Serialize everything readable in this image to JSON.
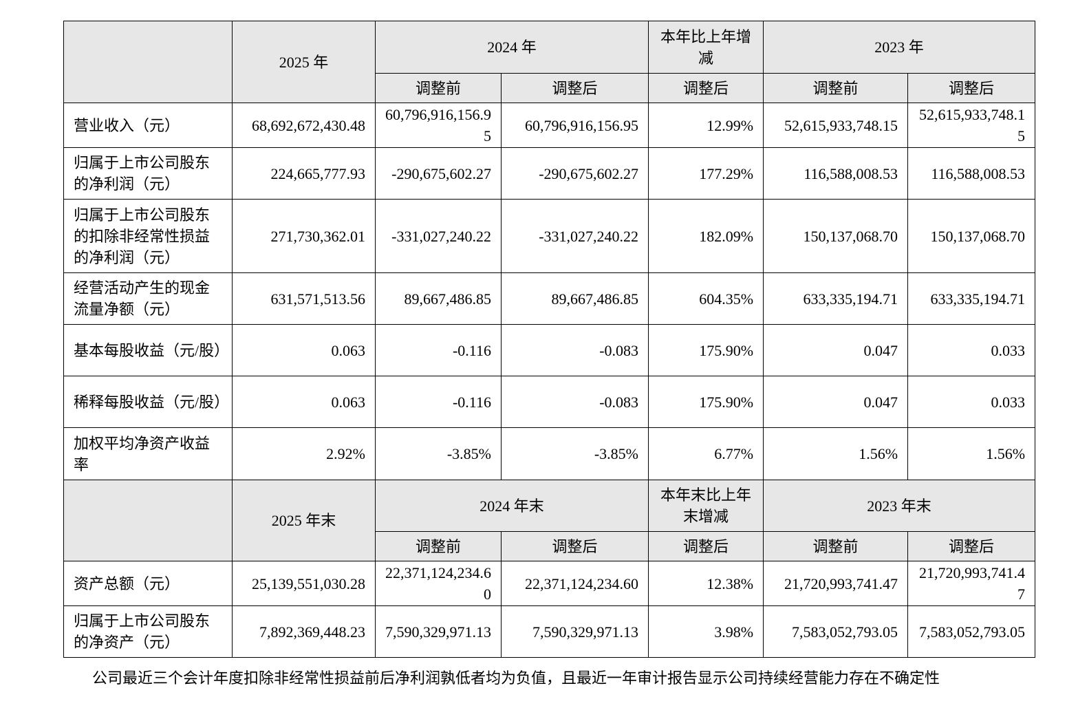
{
  "section1": {
    "header": {
      "year_2025": "2025 年",
      "year_2024": "2024 年",
      "change": "本年比上年增减",
      "year_2023": "2023 年",
      "before": "调整前",
      "after": "调整后"
    },
    "rows": [
      [
        "营业收入（元）",
        "68,692,672,430.48",
        "60,796,916,156.95",
        "60,796,916,156.95",
        "12.99%",
        "52,615,933,748.15",
        "52,615,933,748.15"
      ],
      [
        "归属于上市公司股东的净利润（元）",
        "224,665,777.93",
        "-290,675,602.27",
        "-290,675,602.27",
        "177.29%",
        "116,588,008.53",
        "116,588,008.53"
      ],
      [
        "归属于上市公司股东的扣除非经常性损益的净利润（元）",
        "271,730,362.01",
        "-331,027,240.22",
        "-331,027,240.22",
        "182.09%",
        "150,137,068.70",
        "150,137,068.70"
      ],
      [
        "经营活动产生的现金流量净额（元）",
        "631,571,513.56",
        "89,667,486.85",
        "89,667,486.85",
        "604.35%",
        "633,335,194.71",
        "633,335,194.71"
      ],
      [
        "基本每股收益（元/股）",
        "0.063",
        "-0.116",
        "-0.083",
        "175.90%",
        "0.047",
        "0.033"
      ],
      [
        "稀释每股收益（元/股）",
        "0.063",
        "-0.116",
        "-0.083",
        "175.90%",
        "0.047",
        "0.033"
      ],
      [
        "加权平均净资产收益率",
        "2.92%",
        "-3.85%",
        "-3.85%",
        "6.77%",
        "1.56%",
        "1.56%"
      ]
    ]
  },
  "section2": {
    "header": {
      "year_2025": "2025 年末",
      "year_2024": "2024 年末",
      "change": "本年末比上年末增减",
      "year_2023": "2023 年末",
      "before": "调整前",
      "after": "调整后"
    },
    "rows": [
      [
        "资产总额（元）",
        "25,139,551,030.28",
        "22,371,124,234.60",
        "22,371,124,234.60",
        "12.38%",
        "21,720,993,741.47",
        "21,720,993,741.47"
      ],
      [
        "归属于上市公司股东的净资产（元）",
        "7,892,369,448.23",
        "7,590,329,971.13",
        "7,590,329,971.13",
        "3.98%",
        "7,583,052,793.05",
        "7,583,052,793.05"
      ]
    ]
  },
  "footnote": "公司最近三个会计年度扣除非经常性损益前后净利润孰低者均为负值，且最近一年审计报告显示公司持续经营能力存在不确定性"
}
